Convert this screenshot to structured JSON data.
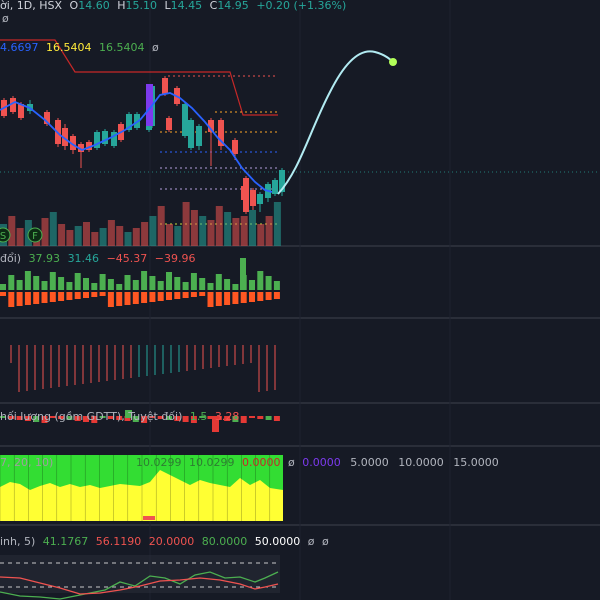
{
  "header": {
    "title_part": "ời, 1D, HSX",
    "o_label": "O",
    "o_value": "14.60",
    "h_label": "H",
    "h_value": "15.10",
    "l_label": "L",
    "l_value": "14.45",
    "c_label": "C",
    "c_value": "14.95",
    "change": "+0.20 (+1.36%)",
    "sub_symbol": "ø"
  },
  "indicator_values": {
    "v1": "4.6697",
    "v2": "16.5404",
    "v3": "16.5404",
    "null_symbol": "ø"
  },
  "event_markers": [
    "S",
    "F"
  ],
  "pane2": {
    "label": "đổi)",
    "values": [
      "37.93",
      "31.46",
      "−45.37",
      "−39.96"
    ],
    "colors": [
      "#4caf50",
      "#26a69a",
      "#ef5350",
      "#ef5350"
    ]
  },
  "pane4": {
    "label": "hối lượng (gồm GDTT), Tuyệt đối)",
    "value1": "1.5",
    "value2": "3.28"
  },
  "pane5": {
    "label": "7, 20, 10)",
    "values": [
      "10.0299",
      "10.0299",
      "0.0000",
      "ø",
      "0.0000"
    ],
    "colors": [
      "#ffeb3b",
      "#ffeb3b",
      "#ef5350",
      "#b2b5be",
      "#7c3aed"
    ],
    "scale_labels": [
      "5.0000",
      "10.0000",
      "15.0000"
    ]
  },
  "pane6": {
    "label": "inh, 5)",
    "values": [
      "41.1767",
      "56.1190",
      "20.0000",
      "80.0000",
      "50.0000",
      "ø",
      "ø"
    ],
    "colors": [
      "#4caf50",
      "#ef5350",
      "#ef5350",
      "#4caf50",
      "#ffffff",
      "#b2b5be",
      "#b2b5be"
    ]
  },
  "colors": {
    "up": "#26a69a",
    "down": "#ef5350",
    "background": "#161a25",
    "ma_line": "#2962ff",
    "projection": "#b2ebf2",
    "target_dot": "#b2ff59",
    "resistance": "#c62828"
  },
  "chart_data": {
    "type": "candlestick",
    "candles": [
      {
        "dir": "down"
      },
      {
        "dir": "down"
      },
      {
        "dir": "down"
      },
      {
        "dir": "up"
      },
      {
        "dir": "down"
      },
      {
        "dir": "down"
      },
      {
        "dir": "down"
      },
      {
        "dir": "down"
      },
      {
        "dir": "down"
      },
      {
        "dir": "down"
      },
      {
        "dir": "up"
      },
      {
        "dir": "up"
      },
      {
        "dir": "up"
      },
      {
        "dir": "down"
      },
      {
        "dir": "up"
      },
      {
        "dir": "up"
      },
      {
        "dir": "up"
      },
      {
        "dir": "down"
      },
      {
        "dir": "down"
      },
      {
        "dir": "up"
      },
      {
        "dir": "down"
      },
      {
        "dir": "up"
      },
      {
        "dir": "down"
      },
      {
        "dir": "down"
      },
      {
        "dir": "up"
      },
      {
        "dir": "down"
      },
      {
        "dir": "down"
      },
      {
        "dir": "down"
      },
      {
        "dir": "up"
      },
      {
        "dir": "down"
      },
      {
        "dir": "up"
      },
      {
        "dir": "up"
      },
      {
        "dir": "up"
      },
      {
        "dir": "up"
      }
    ],
    "last_close": 14.95,
    "last_open": 14.6,
    "last_high": 15.1,
    "last_low": 14.45
  }
}
